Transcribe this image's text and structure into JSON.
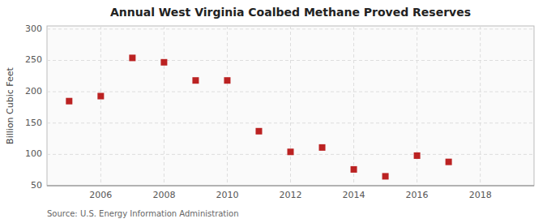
{
  "chart_data": {
    "type": "scatter",
    "title": "Annual West Virginia Coalbed Methane Proved Reserves",
    "y_label": "Billion Cubic Feet",
    "annotations": [
      "Source: U.S. Energy Information Administration"
    ],
    "x": [
      2005,
      2006,
      2007,
      2008,
      2009,
      2010,
      2011,
      2012,
      2013,
      2014,
      2015,
      2016,
      2017
    ],
    "values": [
      185,
      193,
      254,
      247,
      218,
      218,
      137,
      104,
      111,
      76,
      65,
      98,
      88
    ],
    "color": "#bb2222",
    "marker": "square",
    "ylim": [
      50,
      305
    ],
    "yticks": [
      50,
      100,
      150,
      200,
      250,
      300
    ],
    "xlim": [
      2004.3,
      2019.7
    ],
    "xticks": [
      2006,
      2008,
      2010,
      2012,
      2014,
      2016,
      2018
    ],
    "grid": true
  }
}
